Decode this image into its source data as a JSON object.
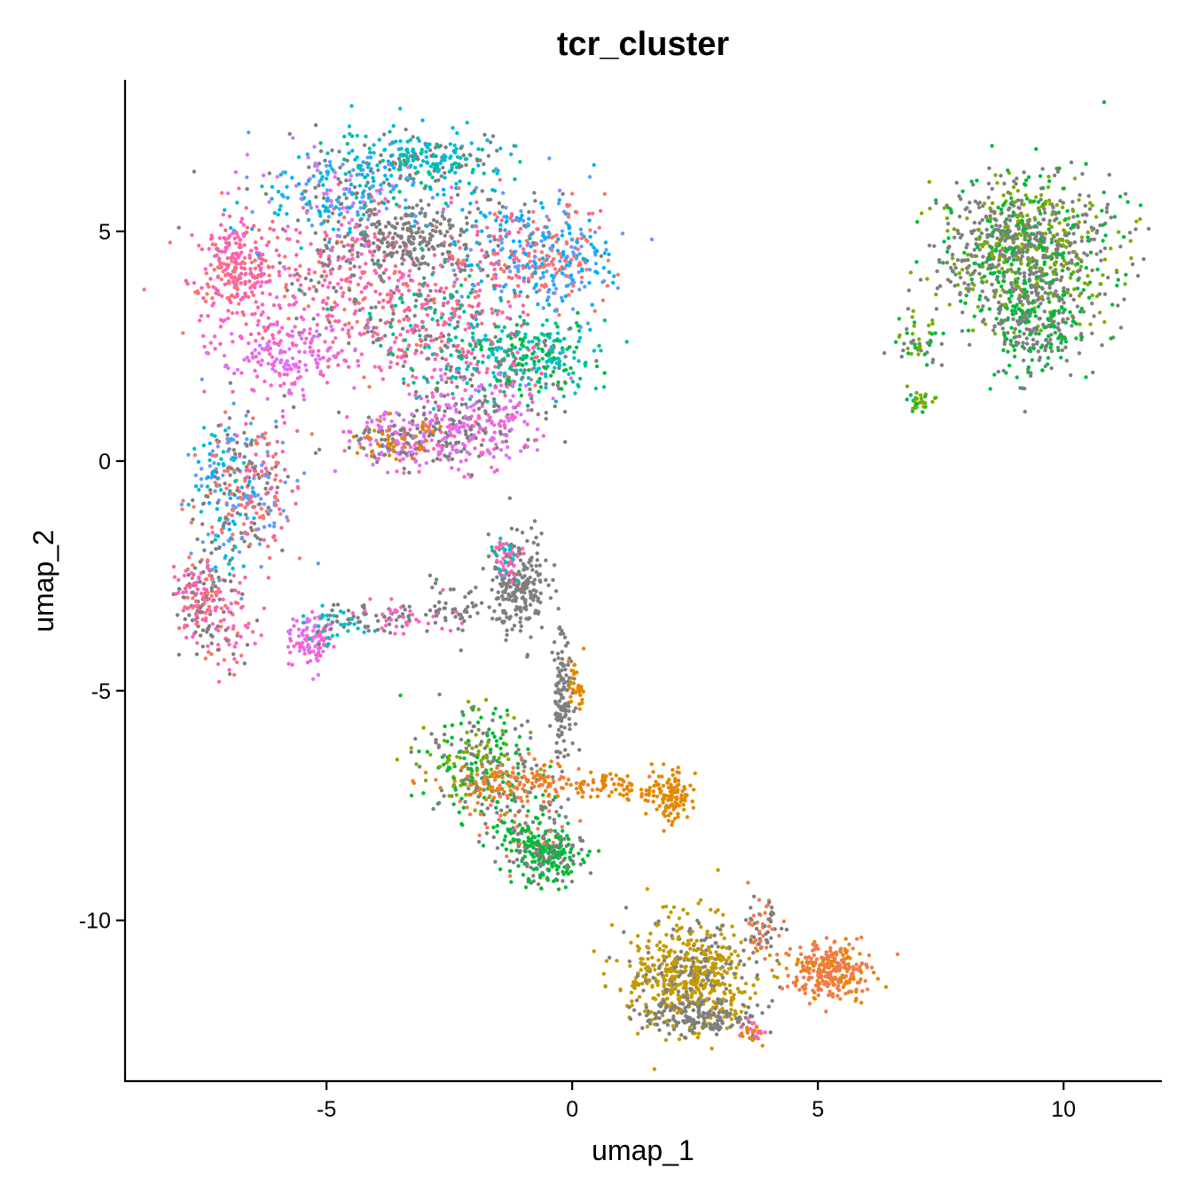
{
  "chart_data": {
    "type": "scatter",
    "title": "tcr_cluster",
    "xlabel": "umap_1",
    "ylabel": "umap_2",
    "xlim": [
      -9.1,
      12.0
    ],
    "ylim": [
      -13.5,
      8.3
    ],
    "x_ticks": [
      -5,
      0,
      5,
      10
    ],
    "y_ticks": [
      5,
      0,
      -5,
      -10
    ],
    "x_tick_labels": [
      "-5",
      "0",
      "5",
      "10"
    ],
    "y_tick_labels": [
      "5",
      "0",
      "-5",
      "-10"
    ],
    "grid": false,
    "legend": "none",
    "point_size": 2.2,
    "palette": {
      "gray": "#7F7F7F",
      "pink": "#F8766D",
      "hotpink": "#FF61C3",
      "rose": "#F564A4",
      "violet": "#DB72FB",
      "blue": "#619CFF",
      "skyblue": "#00B0F6",
      "cyan": "#00BFC4",
      "teal": "#00C08B",
      "green": "#00BA38",
      "lime": "#7CAE00",
      "olive": "#C49A00",
      "orange": "#E58700",
      "salmon": "#F17C4A"
    },
    "groups": [
      {
        "cx": -4.7,
        "cy": 4.1,
        "sx": 0.95,
        "sy": 0.85,
        "n": 320,
        "colors": [
          "pink",
          "rose",
          "gray",
          "hotpink"
        ]
      },
      {
        "cx": -6.9,
        "cy": 4.2,
        "sx": 0.45,
        "sy": 0.55,
        "n": 260,
        "colors": [
          "pink",
          "rose",
          "hotpink"
        ]
      },
      {
        "cx": -3.1,
        "cy": 6.5,
        "sx": 0.9,
        "sy": 0.35,
        "n": 260,
        "colors": [
          "cyan",
          "skyblue",
          "teal",
          "gray"
        ]
      },
      {
        "cx": -4.7,
        "cy": 5.8,
        "sx": 0.9,
        "sy": 0.55,
        "n": 240,
        "colors": [
          "blue",
          "skyblue",
          "violet",
          "cyan",
          "gray"
        ]
      },
      {
        "cx": -3.3,
        "cy": 4.8,
        "sx": 0.55,
        "sy": 0.35,
        "n": 200,
        "colors": [
          "gray"
        ]
      },
      {
        "cx": -1.2,
        "cy": 4.6,
        "sx": 0.75,
        "sy": 0.7,
        "n": 300,
        "colors": [
          "pink",
          "rose",
          "skyblue",
          "blue",
          "gray"
        ]
      },
      {
        "cx": -0.1,
        "cy": 4.3,
        "sx": 0.45,
        "sy": 0.65,
        "n": 180,
        "colors": [
          "blue",
          "skyblue",
          "pink"
        ]
      },
      {
        "cx": -2.9,
        "cy": 3.1,
        "sx": 0.9,
        "sy": 0.7,
        "n": 300,
        "colors": [
          "pink",
          "rose",
          "gray",
          "teal",
          "hotpink"
        ]
      },
      {
        "cx": -1.6,
        "cy": 2.2,
        "sx": 0.9,
        "sy": 0.45,
        "n": 220,
        "colors": [
          "teal",
          "cyan",
          "gray",
          "rose"
        ]
      },
      {
        "cx": -0.7,
        "cy": 2.3,
        "sx": 0.6,
        "sy": 0.4,
        "n": 160,
        "colors": [
          "teal",
          "green",
          "cyan"
        ]
      },
      {
        "cx": -5.8,
        "cy": 2.4,
        "sx": 0.7,
        "sy": 0.45,
        "n": 200,
        "colors": [
          "violet",
          "hotpink"
        ]
      },
      {
        "cx": -2.6,
        "cy": 0.5,
        "sx": 0.95,
        "sy": 0.35,
        "n": 300,
        "colors": [
          "violet",
          "hotpink",
          "gray"
        ]
      },
      {
        "cx": -3.6,
        "cy": 0.5,
        "sx": 0.4,
        "sy": 0.3,
        "n": 120,
        "colors": [
          "orange",
          "gray",
          "violet"
        ]
      },
      {
        "cx": -1.8,
        "cy": 1.2,
        "sx": 0.7,
        "sy": 0.45,
        "n": 120,
        "colors": [
          "violet",
          "gray",
          "hotpink"
        ]
      },
      {
        "cx": -7.1,
        "cy": -0.8,
        "sx": 0.35,
        "sy": 0.85,
        "n": 220,
        "colors": [
          "pink",
          "blue",
          "skyblue",
          "gray",
          "cyan"
        ]
      },
      {
        "cx": -6.3,
        "cy": -0.5,
        "sx": 0.4,
        "sy": 0.8,
        "n": 180,
        "colors": [
          "pink",
          "gray",
          "rose",
          "blue"
        ]
      },
      {
        "cx": -7.6,
        "cy": -2.9,
        "sx": 0.3,
        "sy": 0.4,
        "n": 130,
        "colors": [
          "pink",
          "rose",
          "hotpink",
          "gray"
        ]
      },
      {
        "cx": -7.2,
        "cy": -3.7,
        "sx": 0.3,
        "sy": 0.45,
        "n": 90,
        "colors": [
          "hotpink",
          "pink",
          "gray"
        ]
      },
      {
        "cx": -5.3,
        "cy": -3.9,
        "sx": 0.22,
        "sy": 0.3,
        "n": 100,
        "colors": [
          "hotpink",
          "violet"
        ]
      },
      {
        "cx": -4.6,
        "cy": -3.5,
        "sx": 0.45,
        "sy": 0.2,
        "n": 60,
        "colors": [
          "gray",
          "cyan"
        ]
      },
      {
        "cx": -3.4,
        "cy": -3.4,
        "sx": 0.55,
        "sy": 0.18,
        "n": 70,
        "colors": [
          "gray",
          "hotpink"
        ]
      },
      {
        "cx": -2.3,
        "cy": -3.2,
        "sx": 0.4,
        "sy": 0.3,
        "n": 40,
        "colors": [
          "gray"
        ]
      },
      {
        "cx": -1.1,
        "cy": -2.7,
        "sx": 0.3,
        "sy": 0.5,
        "n": 230,
        "colors": [
          "gray"
        ]
      },
      {
        "cx": -1.3,
        "cy": -2.1,
        "sx": 0.15,
        "sy": 0.25,
        "n": 50,
        "colors": [
          "hotpink",
          "rose",
          "cyan"
        ]
      },
      {
        "cx": -0.2,
        "cy": -5.2,
        "sx": 0.12,
        "sy": 0.8,
        "n": 120,
        "colors": [
          "gray"
        ]
      },
      {
        "cx": 0.1,
        "cy": -4.9,
        "sx": 0.1,
        "sy": 0.3,
        "n": 30,
        "colors": [
          "orange"
        ]
      },
      {
        "cx": -2.0,
        "cy": -6.6,
        "sx": 0.55,
        "sy": 0.6,
        "n": 260,
        "colors": [
          "green",
          "gray",
          "lime"
        ]
      },
      {
        "cx": -0.5,
        "cy": -8.6,
        "sx": 0.38,
        "sy": 0.32,
        "n": 240,
        "colors": [
          "green",
          "gray"
        ]
      },
      {
        "cx": -1.1,
        "cy": -7.5,
        "sx": 0.45,
        "sy": 0.6,
        "n": 140,
        "colors": [
          "gray",
          "green",
          "salmon"
        ]
      },
      {
        "cx": -0.6,
        "cy": -7.0,
        "sx": 0.9,
        "sy": 0.2,
        "n": 150,
        "colors": [
          "orange",
          "salmon"
        ]
      },
      {
        "cx": 0.9,
        "cy": -7.1,
        "sx": 0.6,
        "sy": 0.12,
        "n": 40,
        "colors": [
          "orange"
        ]
      },
      {
        "cx": 2.0,
        "cy": -7.3,
        "sx": 0.25,
        "sy": 0.25,
        "n": 110,
        "colors": [
          "orange"
        ]
      },
      {
        "cx": 2.4,
        "cy": -11.2,
        "sx": 0.65,
        "sy": 0.6,
        "n": 620,
        "colors": [
          "olive",
          "olive",
          "olive",
          "gray"
        ]
      },
      {
        "cx": 2.6,
        "cy": -12.1,
        "sx": 0.6,
        "sy": 0.2,
        "n": 150,
        "colors": [
          "gray"
        ]
      },
      {
        "cx": 5.3,
        "cy": -11.1,
        "sx": 0.4,
        "sy": 0.3,
        "n": 280,
        "colors": [
          "salmon",
          "salmon",
          "orange"
        ]
      },
      {
        "cx": 3.9,
        "cy": -10.2,
        "sx": 0.18,
        "sy": 0.45,
        "n": 70,
        "colors": [
          "salmon",
          "gray"
        ]
      },
      {
        "cx": 3.7,
        "cy": -12.4,
        "sx": 0.12,
        "sy": 0.12,
        "n": 30,
        "colors": [
          "hotpink",
          "orange"
        ]
      },
      {
        "cx": 9.2,
        "cy": 4.6,
        "sx": 0.85,
        "sy": 0.75,
        "n": 900,
        "colors": [
          "gray",
          "gray",
          "green",
          "lime"
        ]
      },
      {
        "cx": 9.4,
        "cy": 2.9,
        "sx": 0.55,
        "sy": 0.55,
        "n": 260,
        "colors": [
          "gray",
          "green"
        ]
      },
      {
        "cx": 7.0,
        "cy": 2.6,
        "sx": 0.3,
        "sy": 0.3,
        "n": 50,
        "colors": [
          "green",
          "gray",
          "lime"
        ]
      },
      {
        "cx": 7.1,
        "cy": 1.3,
        "sx": 0.2,
        "sy": 0.15,
        "n": 30,
        "colors": [
          "green",
          "lime"
        ]
      }
    ]
  }
}
